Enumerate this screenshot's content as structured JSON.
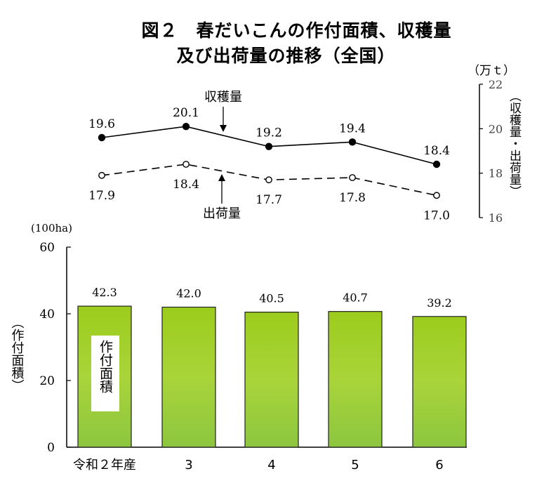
{
  "title": {
    "line1": "図２　春だいこんの作付面積、収穫量",
    "line2": "及び出荷量の推移（全国）"
  },
  "chart_data": [
    {
      "type": "line",
      "categories": [
        "令和２年産",
        "3",
        "4",
        "5",
        "6"
      ],
      "series": [
        {
          "name": "収穫量",
          "values": [
            19.6,
            20.1,
            19.2,
            19.4,
            18.4
          ],
          "labels": [
            "19.6",
            "20.1",
            "19.2",
            "19.4",
            "18.4"
          ]
        },
        {
          "name": "出荷量",
          "values": [
            17.9,
            18.4,
            17.7,
            17.8,
            17.0
          ],
          "labels": [
            "17.9",
            "18.4",
            "17.7",
            "17.8",
            "17.0"
          ]
        }
      ],
      "unit": "（万ｔ）",
      "ylabel": "（収穫量・出荷量）",
      "ylim": [
        16,
        22
      ],
      "yticks": [
        "16",
        "18",
        "20",
        "22"
      ],
      "axis_position": "right",
      "grid": false
    },
    {
      "type": "bar",
      "categories": [
        "令和２年産",
        "3",
        "4",
        "5",
        "6"
      ],
      "values": [
        42.3,
        42.0,
        40.5,
        40.7,
        39.2
      ],
      "value_labels": [
        "42.3",
        "42.0",
        "40.5",
        "40.7",
        "39.2"
      ],
      "unit": "(100ha)",
      "ylabel": "（作付面積）",
      "bar_label": "作付面積",
      "ylim": [
        0,
        60
      ],
      "yticks": [
        "0",
        "20",
        "40",
        "60"
      ],
      "bar_color": "#8cc63f",
      "grid": false
    }
  ]
}
